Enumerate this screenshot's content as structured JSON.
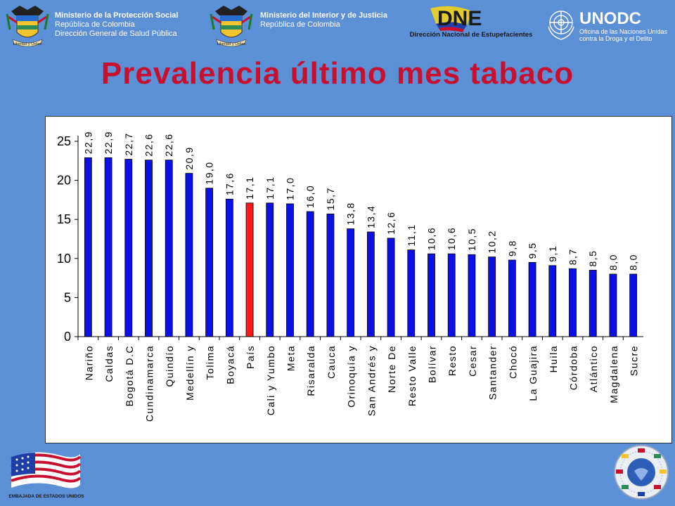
{
  "header": {
    "left_org": {
      "line1": "Ministerio de la Protección Social",
      "line2": "República de Colombia",
      "line3": "Dirección General de Salud Pública"
    },
    "center_org": {
      "line1": "Ministerio del Interior y de Justicia",
      "line2": "República de Colombia"
    },
    "crest_motto": "Libertad y Orden",
    "dne": {
      "logo": "DNE",
      "caption": "Dirección Nacional de Estupefacientes"
    },
    "unodc": {
      "logo": "UNODC",
      "caption_line1": "Oficina de las Naciones Unidas",
      "caption_line2": "contra la Droga y el Delito"
    }
  },
  "title": "Prevalencia último mes tabaco",
  "footer": {
    "embassy_caption": "EMBAJADA DE ESTADOS UNIDOS"
  },
  "colors": {
    "background": "#5b8fd6",
    "title": "#c8102e",
    "bar": "#0a10e6",
    "bar_highlight": "#ff1a1a"
  },
  "chart_data": {
    "type": "bar",
    "categories": [
      "Nariño",
      "Caldas",
      "Bogotá D.C",
      "Cundinamarca",
      "Quindío",
      "Medellín y",
      "Tolima",
      "Boyacá",
      "País",
      "Cali y Yumbo",
      "Meta",
      "Risaralda",
      "Cauca",
      "Orinoquía y",
      "San Andrés y",
      "Norte De",
      "Resto Valle",
      "Bolívar",
      "Resto",
      "Cesar",
      "Santander",
      "Chocó",
      "La Guajira",
      "Huila",
      "Córdoba",
      "Atlántico",
      "Magdalena",
      "Sucre"
    ],
    "values": [
      22.9,
      22.9,
      22.7,
      22.6,
      22.6,
      20.9,
      19.0,
      17.6,
      17.1,
      17.1,
      17.0,
      16.0,
      15.7,
      13.8,
      13.4,
      12.6,
      11.1,
      10.6,
      10.6,
      10.5,
      10.2,
      9.8,
      9.5,
      9.1,
      8.7,
      8.5,
      8.0,
      8.0
    ],
    "value_labels": [
      "22,9",
      "22,9",
      "22,7",
      "22,6",
      "22,6",
      "20,9",
      "19,0",
      "17,6",
      "17,1",
      "17,1",
      "17,0",
      "16,0",
      "15,7",
      "13,8",
      "13,4",
      "12,6",
      "11,1",
      "10,6",
      "10,6",
      "10,5",
      "10,2",
      "9,8",
      "9,5",
      "9,1",
      "8,7",
      "8,5",
      "8,0",
      "8,0"
    ],
    "highlight_index": 8,
    "ylim": [
      0,
      25
    ],
    "yticks": [
      0,
      5,
      10,
      15,
      20,
      25
    ],
    "grid": false,
    "title": "",
    "xlabel": "",
    "ylabel": ""
  }
}
